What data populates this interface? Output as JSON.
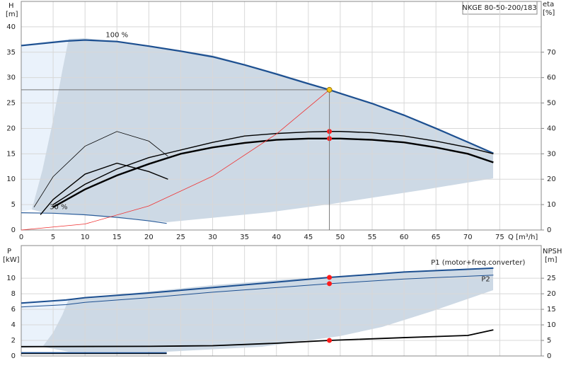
{
  "chart_data": [
    {
      "type": "line",
      "title": "NKGE 80-50-200/183",
      "ylabel": "H",
      "yunit": "[m]",
      "y2label": "eta",
      "y2unit": "[%]",
      "xlabel": "Q [m³/h]",
      "xlim": [
        0,
        81.5
      ],
      "ylim": [
        0,
        45
      ],
      "y2lim": [
        0,
        90
      ],
      "xticks": [
        0,
        5,
        10,
        15,
        20,
        25,
        30,
        35,
        40,
        45,
        50,
        55,
        60,
        65,
        70,
        75
      ],
      "yticks": [
        0,
        5,
        10,
        15,
        20,
        25,
        30,
        35,
        40
      ],
      "y2ticks": [
        0,
        10,
        20,
        30,
        40,
        50,
        60,
        70
      ],
      "grid": true,
      "series": [
        {
          "label": "100 %",
          "color": "#1c4f90",
          "width": 2.2,
          "x": [
            0,
            7,
            10,
            15,
            20,
            25,
            30,
            35,
            40,
            45,
            48.3,
            50,
            55,
            60,
            65,
            70,
            74
          ],
          "values": [
            36.3,
            37.2,
            37.4,
            37.1,
            36.2,
            35.2,
            34.1,
            32.5,
            30.7,
            28.8,
            27.6,
            26.9,
            24.9,
            22.6,
            20,
            17.3,
            15.1
          ]
        },
        {
          "label": "30 %",
          "color": "#2a5c9a",
          "width": 1.2,
          "x": [
            0,
            5,
            10,
            15,
            20,
            22.8
          ],
          "values": [
            3.4,
            3.3,
            3.0,
            2.5,
            1.8,
            1.3
          ]
        },
        {
          "color": "#000000",
          "width": 1.4,
          "axis": "y2",
          "x": [
            5,
            10,
            15,
            20,
            25,
            30,
            35,
            40,
            45,
            48.3,
            50,
            55,
            60,
            65,
            70,
            74
          ],
          "values": [
            10,
            18,
            24,
            28.5,
            31.5,
            34.5,
            37,
            38,
            38.6,
            38.8,
            38.8,
            38.3,
            37,
            35,
            32.5,
            30
          ]
        },
        {
          "color": "#000000",
          "width": 2.4,
          "axis": "y2",
          "x": [
            5,
            10,
            15,
            20,
            25,
            30,
            35,
            40,
            45,
            48.3,
            50,
            55,
            60,
            65,
            70,
            74
          ],
          "values": [
            9,
            16,
            21.5,
            26,
            30,
            32.5,
            34.3,
            35.5,
            36,
            36,
            36,
            35.5,
            34.5,
            32.5,
            30,
            26.6
          ]
        },
        {
          "color": "#000000",
          "width": 0.8,
          "axis": "y2",
          "x": [
            2,
            5,
            10,
            15,
            20,
            23
          ],
          "values": [
            9,
            21,
            33,
            38.8,
            35,
            29
          ]
        },
        {
          "color": "#000000",
          "width": 1.4,
          "axis": "y2",
          "x": [
            3,
            5,
            10,
            15,
            20,
            23
          ],
          "values": [
            6,
            12,
            22,
            26.3,
            23,
            20
          ]
        },
        {
          "color": "#f03030",
          "width": 0.8,
          "x": [
            0,
            10,
            20,
            30,
            40,
            48.3
          ],
          "values": [
            0,
            1.18,
            4.73,
            10.6,
            18.9,
            27.6
          ]
        },
        {
          "style": "dot",
          "color": "#ff1a1a",
          "axis": "y2",
          "x": [
            48.3,
            48.3
          ],
          "values": [
            38.8,
            36
          ]
        },
        {
          "style": "dot",
          "color": "#f5c518",
          "crosshair": true,
          "x": [
            48.3
          ],
          "values": [
            27.6
          ]
        }
      ]
    },
    {
      "type": "line",
      "ylabel": "P",
      "yunit": "[kW]",
      "y2label": "NPSH",
      "y2unit": "[m]",
      "xlim": [
        0,
        81.5
      ],
      "ylim": [
        0,
        14.2
      ],
      "y2lim": [
        0,
        35.5
      ],
      "xticks": [
        0,
        5,
        10,
        15,
        20,
        25,
        30,
        35,
        40,
        45,
        50,
        55,
        60,
        65,
        70,
        75
      ],
      "yticks": [
        0,
        2,
        4,
        6,
        8,
        10
      ],
      "y2ticks": [
        0,
        5,
        10,
        15,
        20,
        25
      ],
      "grid": true,
      "series": [
        {
          "name": "P1 (motor+freq.converter)",
          "color": "#1c4f90",
          "width": 2,
          "x": [
            0,
            7,
            10,
            20,
            30,
            40,
            48.3,
            60,
            74
          ],
          "values": [
            6.8,
            7.2,
            7.5,
            8.1,
            8.8,
            9.5,
            10.1,
            10.8,
            11.3
          ]
        },
        {
          "name": "P2",
          "color": "#1c4f90",
          "width": 1,
          "x": [
            0,
            7,
            10,
            20,
            30,
            40,
            48.3,
            60,
            74
          ],
          "values": [
            6.3,
            6.6,
            6.9,
            7.5,
            8.2,
            8.8,
            9.3,
            9.9,
            10.4
          ]
        },
        {
          "color": "#000000",
          "width": 1.8,
          "axis": "y2",
          "x": [
            0,
            20,
            30,
            40,
            48.3,
            60,
            70,
            74
          ],
          "values": [
            3.0,
            3.1,
            3.3,
            4.1,
            5.0,
            5.9,
            6.6,
            8.4
          ]
        },
        {
          "color": "#1c4f90",
          "width": 2,
          "x": [
            0,
            22.8
          ],
          "values": [
            0.4,
            0.4
          ]
        },
        {
          "color": "#000000",
          "width": 1,
          "x": [
            0,
            22.8
          ],
          "values": [
            0.3,
            0.3
          ]
        },
        {
          "style": "dot",
          "color": "#ff1a1a",
          "x": [
            48.3,
            48.3
          ],
          "values": [
            10.1,
            9.3
          ]
        },
        {
          "style": "dot",
          "color": "#ff1a1a",
          "axis": "y2",
          "x": [
            48.3
          ],
          "values": [
            5.0
          ]
        }
      ]
    }
  ]
}
